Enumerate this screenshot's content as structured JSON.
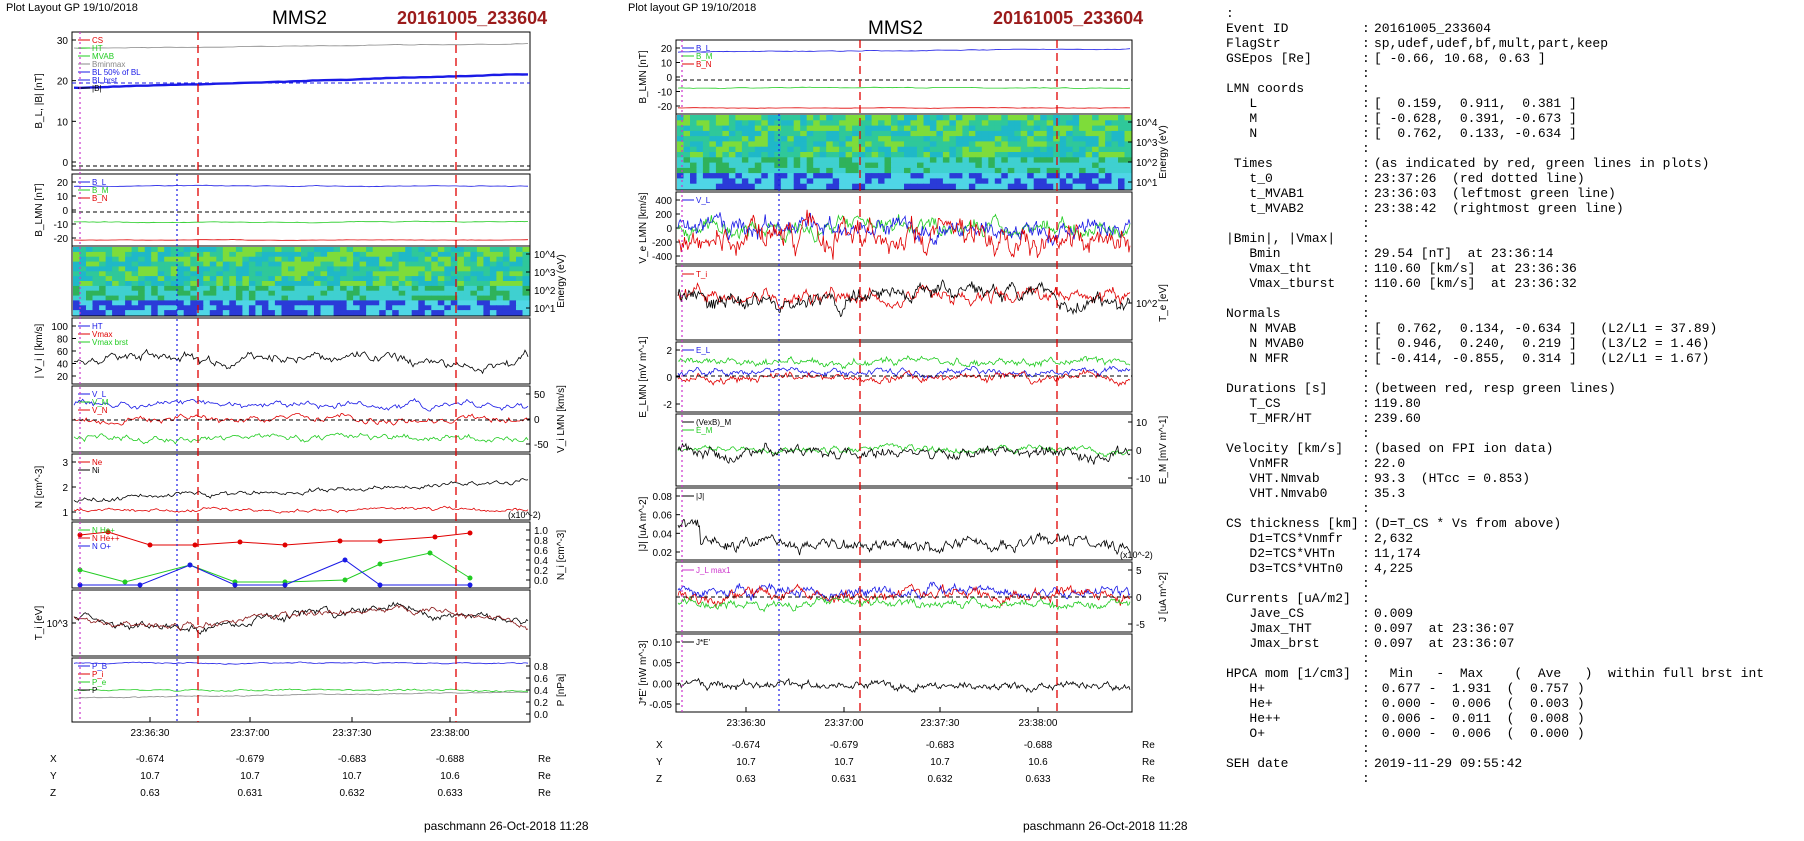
{
  "left": {
    "plot_label": "Plot Layout GP 19/10/2018",
    "spacecraft": "MMS2",
    "event_code": "20161005_233604",
    "footer": "paschmann 26-Oct-2018 11:28"
  },
  "middle": {
    "plot_label": "Plot layout GP 19/10/2018",
    "spacecraft": "MMS2",
    "event_code": "20161005_233604",
    "footer": "paschmann 26-Oct-2018 11:28"
  },
  "chart_data": [
    {
      "type": "line",
      "panel": "left",
      "time_ticks": [
        "23:36:30",
        "23:37:00",
        "23:37:30",
        "23:38:00"
      ],
      "red_dashed_lines": [
        "23:36:33",
        "23:38:10"
      ],
      "ylabels": [
        "B_L, |B| [nT]",
        "B_LMN [nT]",
        "Energy (eV)",
        "| V_i | [km/s]",
        "V_i LMN [km/s]",
        "N [cm^-3]",
        "N_i [cm^-3]",
        "T_i [eV]",
        "P [nPa]"
      ],
      "legends": [
        [
          "CS",
          "HT",
          "MVAB",
          "Bminmax",
          "BL 50% of BL",
          "BL brst",
          "|B|"
        ],
        [
          "B_L",
          "B_M",
          "B_N"
        ],
        [
          "HT",
          "Vmax",
          "Vmax brst"
        ],
        [
          "V_L",
          "V_M",
          "V_N"
        ],
        [
          "Ne",
          "Ni"
        ],
        [
          "N He+",
          "N He++",
          "N O+"
        ],
        [
          "P_B",
          "P_i",
          "P_e",
          "P"
        ]
      ],
      "ytick_sets": [
        [
          "30",
          "20",
          "10",
          "0"
        ],
        [
          "20",
          "10",
          "0",
          "-10",
          "-20"
        ],
        [
          "10^4",
          "10^3",
          "10^2",
          "10^1"
        ],
        [
          "100",
          "80",
          "60",
          "40",
          "20"
        ],
        [
          "50",
          "0",
          "-50"
        ],
        [
          "3",
          "2",
          "1"
        ],
        [
          "1.0",
          "0.8",
          "0.6",
          "0.4",
          "0.2",
          "0.0"
        ],
        [
          "10^3"
        ],
        [
          "0.8",
          "0.6",
          "0.4",
          "0.2",
          "0.0"
        ]
      ],
      "axis_exponent": "(x10^-2)",
      "coordinates": {
        "labels": [
          "X",
          "Y",
          "Z"
        ],
        "values": [
          [
            "-0.674",
            "-0.679",
            "-0.683",
            "-0.688"
          ],
          [
            "10.7",
            "10.7",
            "10.7",
            "10.6"
          ],
          [
            "0.63",
            "0.631",
            "0.632",
            "0.633"
          ]
        ],
        "unit": "Re"
      }
    },
    {
      "type": "line",
      "panel": "middle",
      "time_ticks": [
        "23:36:30",
        "23:37:00",
        "23:37:30",
        "23:38:00"
      ],
      "red_dashed_lines": [
        "23:36:37",
        "23:38:00"
      ],
      "ylabels": [
        "B_LMN [nT]",
        "Energy (eV)",
        "V_e LMN [km/s]",
        "T_e [eV]",
        "E_LMN [mV m^-1]",
        "E_M [mV m^-1]",
        "|J| [uA m^-2]",
        "J [uA m^-2]",
        "J*E' [nW m^-3]"
      ],
      "legends": [
        [
          "B_L",
          "B_M",
          "B_N"
        ],
        [
          "V_L"
        ],
        [
          "T_i"
        ],
        [
          "E_L"
        ],
        [
          "(VexB)_M",
          "E_M"
        ],
        [
          "|J|"
        ],
        [
          "J_L max1"
        ],
        [
          "J*E'"
        ]
      ],
      "ytick_sets": [
        [
          "20",
          "10",
          "0",
          "-10",
          "-20"
        ],
        [
          "10^4",
          "10^3",
          "10^2",
          "10^1"
        ],
        [
          "400",
          "200",
          "0",
          "-200",
          "-400"
        ],
        [
          "10^2"
        ],
        [
          "2",
          "0",
          "-2"
        ],
        [
          "10",
          "0",
          "-10"
        ],
        [
          "0.08",
          "0.06",
          "0.04",
          "0.02"
        ],
        [
          "5",
          "0",
          "-5"
        ],
        [
          "0.10",
          "0.05",
          "0.00",
          "-0.05"
        ]
      ],
      "axis_exponent": "(x10^-2)",
      "coordinates": {
        "labels": [
          "X",
          "Y",
          "Z"
        ],
        "values": [
          [
            "-0.674",
            "-0.679",
            "-0.683",
            "-0.688"
          ],
          [
            "10.7",
            "10.7",
            "10.7",
            "10.6"
          ],
          [
            "0.63",
            "0.631",
            "0.632",
            "0.633"
          ]
        ],
        "unit": "Re"
      }
    }
  ],
  "colors": {
    "red": "#e00000",
    "green": "#22cc22",
    "blue": "#1a1ae6",
    "black": "#000000",
    "gray": "#888888",
    "title_red": "#9b1b1b",
    "magenta": "#cc33cc"
  },
  "info": {
    "lead": ":",
    "rows": [
      {
        "k": "Event ID",
        "v": "20161005_233604"
      },
      {
        "k": "FlagStr",
        "v": "sp,udef,udef,bf,mult,part,keep"
      },
      {
        "k": "GSEpos [Re]",
        "v": "[ -0.66, 10.68, 0.63 ]"
      },
      {
        "k": "",
        "v": ""
      },
      {
        "k": "LMN coords",
        "v": ""
      },
      {
        "k": "   L",
        "v": "[  0.159,  0.911,  0.381 ]"
      },
      {
        "k": "   M",
        "v": "[ -0.628,  0.391, -0.673 ]"
      },
      {
        "k": "   N",
        "v": "[  0.762,  0.133, -0.634 ]"
      },
      {
        "k": "",
        "v": ""
      },
      {
        "k": " Times",
        "v": "(as indicated by red, green lines in plots)"
      },
      {
        "k": "   t_0",
        "v": "23:37:26  (red dotted line)"
      },
      {
        "k": "   t_MVAB1",
        "v": "23:36:03  (leftmost green line)"
      },
      {
        "k": "   t_MVAB2",
        "v": "23:38:42  (rightmost green line)"
      },
      {
        "k": "",
        "v": ""
      },
      {
        "k": "|Bmin|, |Vmax|",
        "v": ""
      },
      {
        "k": "   Bmin",
        "v": "29.54 [nT]  at 23:36:14"
      },
      {
        "k": "   Vmax_tht",
        "v": "110.60 [km/s]  at 23:36:36"
      },
      {
        "k": "   Vmax_tburst",
        "v": "110.60 [km/s]  at 23:36:32"
      },
      {
        "k": "",
        "v": ""
      },
      {
        "k": "Normals",
        "v": ""
      },
      {
        "k": "   N MVAB",
        "v": "[  0.762,  0.134, -0.634 ]   (L2/L1 = 37.89)"
      },
      {
        "k": "   N MVAB0",
        "v": "[  0.946,  0.240,  0.219 ]   (L3/L2 = 1.46)"
      },
      {
        "k": "   N MFR",
        "v": "[ -0.414, -0.855,  0.314 ]   (L2/L1 = 1.67)"
      },
      {
        "k": "",
        "v": ""
      },
      {
        "k": "Durations [s]",
        "v": "(between red, resp green lines)"
      },
      {
        "k": "   T_CS",
        "v": "119.80"
      },
      {
        "k": "   T_MFR/HT",
        "v": "239.60"
      },
      {
        "k": "",
        "v": ""
      },
      {
        "k": "Velocity [km/s]",
        "v": "(based on FPI ion data)"
      },
      {
        "k": "   VnMFR",
        "v": "22.0"
      },
      {
        "k": "   VHT.Nmvab",
        "v": "93.3  (HTcc = 0.853)"
      },
      {
        "k": "   VHT.Nmvab0",
        "v": "35.3"
      },
      {
        "k": "",
        "v": ""
      },
      {
        "k": "CS thickness [km]",
        "v": "(D=T_CS * Vs from above)"
      },
      {
        "k": "   D1=TCS*Vnmfr",
        "v": "2,632"
      },
      {
        "k": "   D2=TCS*VHTn",
        "v": "11,174"
      },
      {
        "k": "   D3=TCS*VHTn0",
        "v": "4,225"
      },
      {
        "k": "",
        "v": ""
      },
      {
        "k": "Currents [uA/m2]",
        "v": ""
      },
      {
        "k": "   Jave_CS",
        "v": "0.009"
      },
      {
        "k": "   Jmax_THT",
        "v": "0.097  at 23:36:07"
      },
      {
        "k": "   Jmax_brst",
        "v": "0.097  at 23:36:07"
      },
      {
        "k": "",
        "v": ""
      },
      {
        "k": "HPCA mom [1/cm3]",
        "v": "  Min   -  Max    (  Ave   )  within full brst int"
      },
      {
        "k": "   H+",
        "v": " 0.677 -  1.931  (  0.757 )"
      },
      {
        "k": "   He+",
        "v": " 0.000 -  0.006  (  0.003 )"
      },
      {
        "k": "   He++",
        "v": " 0.006 -  0.011  (  0.008 )"
      },
      {
        "k": "   O+",
        "v": " 0.000 -  0.006  (  0.000 )"
      },
      {
        "k": "",
        "v": ""
      },
      {
        "k": "SEH date",
        "v": "2019-11-29 09:55:42"
      },
      {
        "k": "",
        "v": ""
      }
    ]
  }
}
